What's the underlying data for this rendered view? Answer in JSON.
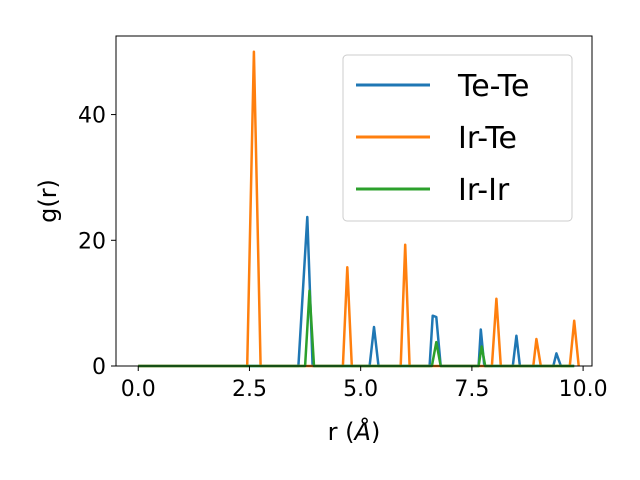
{
  "chart_data": {
    "type": "line",
    "xlabel_main": "r (",
    "xlabel_unit": "Å",
    "xlabel_close": ")",
    "ylabel": "g(r)",
    "xlim": [
      -0.5,
      10.2
    ],
    "ylim": [
      0,
      52.5
    ],
    "xticks": [
      0.0,
      2.5,
      5.0,
      7.5,
      10.0
    ],
    "xtick_labels": [
      "0.0",
      "2.5",
      "5.0",
      "7.5",
      "10.0"
    ],
    "yticks": [
      0,
      20,
      40
    ],
    "ytick_labels": [
      "0",
      "20",
      "40"
    ],
    "grid": false,
    "legend_position": "top-right",
    "series": [
      {
        "name": "Te-Te",
        "color": "#1f77b4",
        "points": [
          [
            0.0,
            0
          ],
          [
            3.6,
            0
          ],
          [
            3.8,
            23.7
          ],
          [
            3.92,
            0
          ],
          [
            5.2,
            0
          ],
          [
            5.3,
            6.2
          ],
          [
            5.4,
            0
          ],
          [
            6.55,
            0
          ],
          [
            6.62,
            8.0
          ],
          [
            6.7,
            7.8
          ],
          [
            6.8,
            0
          ],
          [
            7.65,
            0
          ],
          [
            7.7,
            5.8
          ],
          [
            7.78,
            0
          ],
          [
            8.42,
            0
          ],
          [
            8.5,
            4.8
          ],
          [
            8.58,
            0
          ],
          [
            9.33,
            0
          ],
          [
            9.4,
            2.0
          ],
          [
            9.5,
            0
          ],
          [
            9.8,
            0
          ]
        ]
      },
      {
        "name": "Ir-Te",
        "color": "#ff7f0e",
        "points": [
          [
            0.0,
            0
          ],
          [
            2.45,
            0
          ],
          [
            2.6,
            50.0
          ],
          [
            2.75,
            0
          ],
          [
            4.6,
            0
          ],
          [
            4.7,
            15.7
          ],
          [
            4.8,
            0
          ],
          [
            5.9,
            0
          ],
          [
            6.0,
            19.3
          ],
          [
            6.1,
            0
          ],
          [
            7.95,
            0
          ],
          [
            8.05,
            10.7
          ],
          [
            8.15,
            0
          ],
          [
            8.88,
            0
          ],
          [
            8.95,
            4.3
          ],
          [
            9.05,
            0
          ],
          [
            9.7,
            0
          ],
          [
            9.8,
            7.2
          ],
          [
            9.9,
            0
          ]
        ]
      },
      {
        "name": "Ir-Ir",
        "color": "#2ca02c",
        "points": [
          [
            0.0,
            0
          ],
          [
            3.75,
            0
          ],
          [
            3.85,
            12.0
          ],
          [
            3.95,
            0
          ],
          [
            6.6,
            0
          ],
          [
            6.7,
            3.8
          ],
          [
            6.8,
            0
          ],
          [
            7.65,
            0
          ],
          [
            7.72,
            3.1
          ],
          [
            7.8,
            0
          ],
          [
            9.8,
            0
          ]
        ]
      }
    ]
  }
}
